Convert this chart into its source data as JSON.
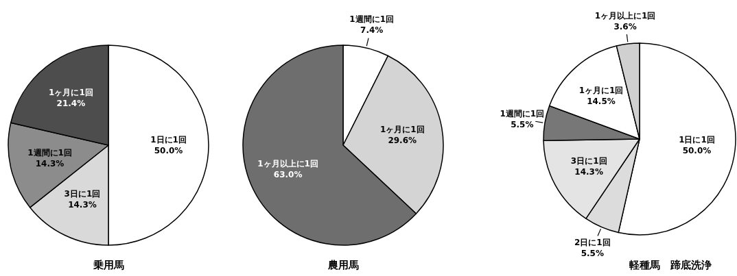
{
  "chart_data": [
    {
      "type": "pie",
      "title": "乗用馬",
      "categories": [
        "1日に1回",
        "3日に1回",
        "1週間に1回",
        "1ヶ月に1回"
      ],
      "values": [
        50.0,
        14.3,
        14.3,
        21.4
      ],
      "colors": [
        "#ffffff",
        "#d9d9d9",
        "#8c8c8c",
        "#4d4d4d"
      ],
      "value_labels": [
        "50.0%",
        "14.3%",
        "14.3%",
        "21.4%"
      ]
    },
    {
      "type": "pie",
      "title": "農用馬",
      "categories": [
        "1週間に1回",
        "1ヶ月に1回",
        "1ヶ月以上に1回"
      ],
      "values": [
        7.4,
        29.6,
        63.0
      ],
      "colors": [
        "#ffffff",
        "#d4d4d4",
        "#6e6e6e"
      ],
      "value_labels": [
        "7.4%",
        "29.6%",
        "63.0%"
      ]
    },
    {
      "type": "pie",
      "title": "軽種馬　蹄底洗浄",
      "categories": [
        "1日に1回",
        "2日に1回",
        "3日に1回",
        "1週間に1回",
        "1ヶ月に1回",
        "1ヶ月以上に1回"
      ],
      "values": [
        50.0,
        5.5,
        14.3,
        5.5,
        14.5,
        3.6
      ],
      "colors": [
        "#ffffff",
        "#dcdcdc",
        "#e4e4e4",
        "#777777",
        "#ffffff",
        "#d0d0d0"
      ],
      "value_labels": [
        "50.0%",
        "5.5%",
        "14.3%",
        "5.5%",
        "14.5%",
        "3.6%"
      ]
    }
  ]
}
